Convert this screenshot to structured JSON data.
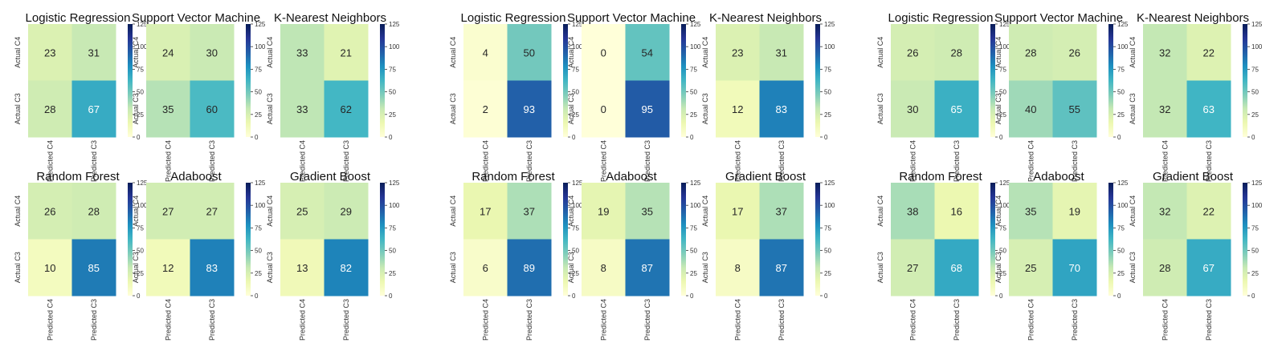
{
  "chart_data": [
    {
      "panel": "left",
      "type": "heatmap",
      "x_labels": [
        "Predicted C4",
        "Predicted C3"
      ],
      "y_labels": [
        "Actual C4",
        "Actual C3"
      ],
      "colorbar": {
        "min": 0,
        "max": 125,
        "ticks": [
          0,
          25,
          50,
          75,
          100,
          125
        ],
        "colormap": "YlGnBu"
      },
      "matrices": [
        {
          "title": "Logistic Regression",
          "values": [
            [
              23,
              31
            ],
            [
              28,
              67
            ]
          ]
        },
        {
          "title": "Support Vector Machine",
          "values": [
            [
              24,
              30
            ],
            [
              35,
              60
            ]
          ]
        },
        {
          "title": "K-Nearest Neighbors",
          "values": [
            [
              33,
              21
            ],
            [
              33,
              62
            ]
          ]
        },
        {
          "title": "Random Forest",
          "values": [
            [
              26,
              28
            ],
            [
              10,
              85
            ]
          ]
        },
        {
          "title": "Adaboost",
          "values": [
            [
              27,
              27
            ],
            [
              12,
              83
            ]
          ]
        },
        {
          "title": "Gradient Boost",
          "values": [
            [
              25,
              29
            ],
            [
              13,
              82
            ]
          ]
        }
      ]
    },
    {
      "panel": "middle",
      "type": "heatmap",
      "x_labels": [
        "Predicted C4",
        "Predicted C3"
      ],
      "y_labels": [
        "Actual C4",
        "Actual C3"
      ],
      "colorbar": {
        "min": 0,
        "max": 125,
        "ticks": [
          0,
          25,
          50,
          75,
          100,
          125
        ],
        "colormap": "YlGnBu"
      },
      "matrices": [
        {
          "title": "Logistic Regression",
          "values": [
            [
              4,
              50
            ],
            [
              2,
              93
            ]
          ]
        },
        {
          "title": "Support Vector Machine",
          "values": [
            [
              0,
              54
            ],
            [
              0,
              95
            ]
          ]
        },
        {
          "title": "K-Nearest Neighbors",
          "values": [
            [
              23,
              31
            ],
            [
              12,
              83
            ]
          ]
        },
        {
          "title": "Random Forest",
          "values": [
            [
              17,
              37
            ],
            [
              6,
              89
            ]
          ]
        },
        {
          "title": "Adaboost",
          "values": [
            [
              19,
              35
            ],
            [
              8,
              87
            ]
          ]
        },
        {
          "title": "Gradient Boost",
          "values": [
            [
              17,
              37
            ],
            [
              8,
              87
            ]
          ]
        }
      ]
    },
    {
      "panel": "right",
      "type": "heatmap",
      "x_labels": [
        "Predicted C4",
        "Predicted C3"
      ],
      "y_labels": [
        "Actual C4",
        "Actual C3"
      ],
      "colorbar": {
        "min": 0,
        "max": 125,
        "ticks": [
          0,
          25,
          50,
          75,
          100,
          125
        ],
        "colormap": "YlGnBu"
      },
      "matrices": [
        {
          "title": "Logistic Regression",
          "values": [
            [
              26,
              28
            ],
            [
              30,
              65
            ]
          ]
        },
        {
          "title": "Support Vector Machine",
          "values": [
            [
              28,
              26
            ],
            [
              40,
              55
            ]
          ]
        },
        {
          "title": "K-Nearest Neighbors",
          "values": [
            [
              32,
              22
            ],
            [
              32,
              63
            ]
          ]
        },
        {
          "title": "Random Forest",
          "values": [
            [
              38,
              16
            ],
            [
              27,
              68
            ]
          ]
        },
        {
          "title": "Adaboost",
          "values": [
            [
              35,
              19
            ],
            [
              25,
              70
            ]
          ]
        },
        {
          "title": "Gradient Boost",
          "values": [
            [
              32,
              22
            ],
            [
              28,
              67
            ]
          ]
        }
      ]
    }
  ]
}
